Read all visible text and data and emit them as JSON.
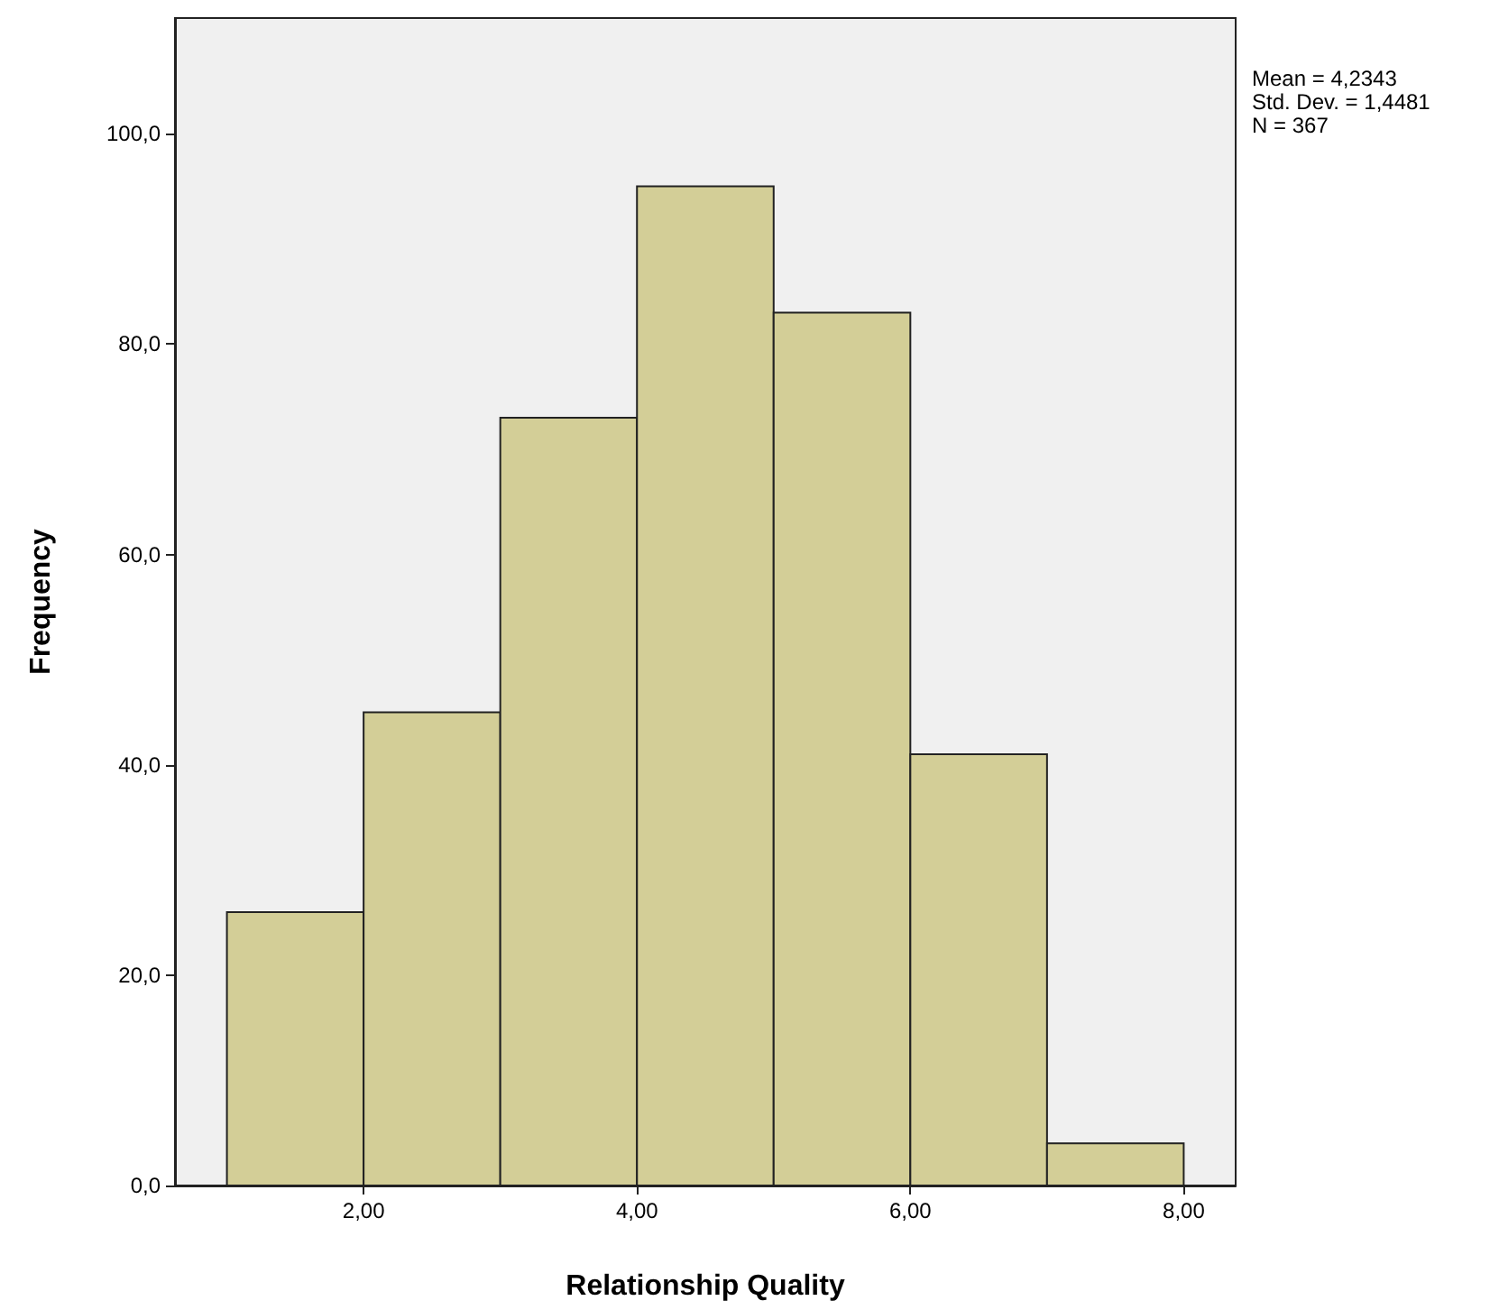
{
  "chart_data": {
    "type": "histogram",
    "xlabel": "Relationship Quality",
    "ylabel": "Frequency",
    "bins": [
      1,
      2,
      3,
      4,
      5,
      6,
      7,
      8
    ],
    "values": [
      26,
      45,
      73,
      95,
      83,
      41,
      4
    ],
    "color": "#d3ce97",
    "xlim": [
      0.62,
      8.38
    ],
    "xticks": [
      {
        "value": 2,
        "label": "2,00"
      },
      {
        "value": 4,
        "label": "4,00"
      },
      {
        "value": 6,
        "label": "6,00"
      },
      {
        "value": 8,
        "label": "8,00"
      }
    ],
    "ylim": [
      0,
      111
    ],
    "yticks": [
      {
        "value": 0,
        "label": "0,0"
      },
      {
        "value": 20,
        "label": "20,0"
      },
      {
        "value": 40,
        "label": "40,0"
      },
      {
        "value": 60,
        "label": "60,0"
      },
      {
        "value": 80,
        "label": "80,0"
      },
      {
        "value": 100,
        "label": "100,0"
      }
    ],
    "annotations": [
      "Mean = 4,2343",
      "Std. Dev. = 1,4481",
      "N = 367"
    ],
    "grid": false
  }
}
